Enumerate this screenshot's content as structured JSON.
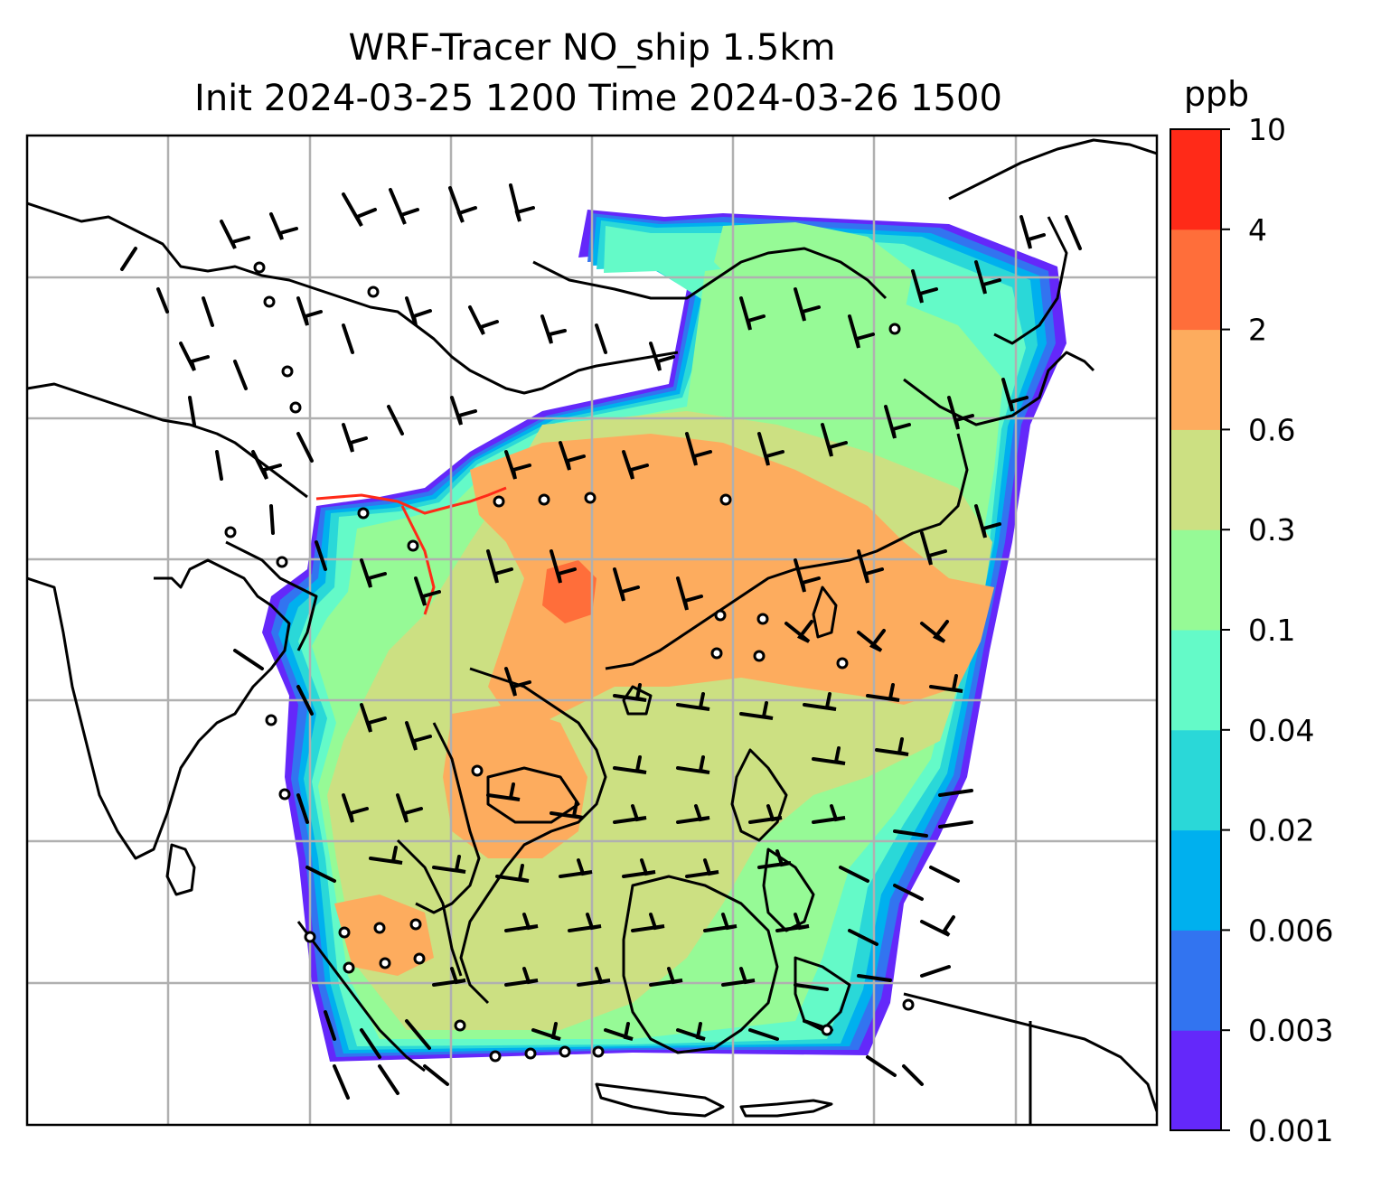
{
  "title": {
    "line1": "WRF-Tracer NO_ship 1.5km",
    "line2": "Init 2024-03-25 1200 Time 2024-03-26 1500"
  },
  "colorbar": {
    "unit": "ppb",
    "levels": [
      "0.001",
      "0.003",
      "0.006",
      "0.02",
      "0.04",
      "0.1",
      "0.3",
      "0.6",
      "2",
      "4",
      "10"
    ],
    "colors": [
      "#6428fa",
      "#3274f0",
      "#00b0ee",
      "#2ad8d8",
      "#64fac8",
      "#96fa96",
      "#cce082",
      "#fdac5e",
      "#ff6e3a",
      "#ff2a18"
    ]
  },
  "map": {
    "gridlines": true,
    "overlays": [
      "coastlines",
      "wind-barbs",
      "calm-circles"
    ],
    "field_colors": {
      "violet": "#6428fa",
      "blue": "#3274f0",
      "sky": "#00b0ee",
      "cyan": "#2ad8d8",
      "aqua": "#64fac8",
      "green": "#96fa96",
      "olive": "#cce082",
      "orange": "#fdac5e",
      "red_orange": "#ff6e3a",
      "red": "#ff2a18"
    }
  }
}
